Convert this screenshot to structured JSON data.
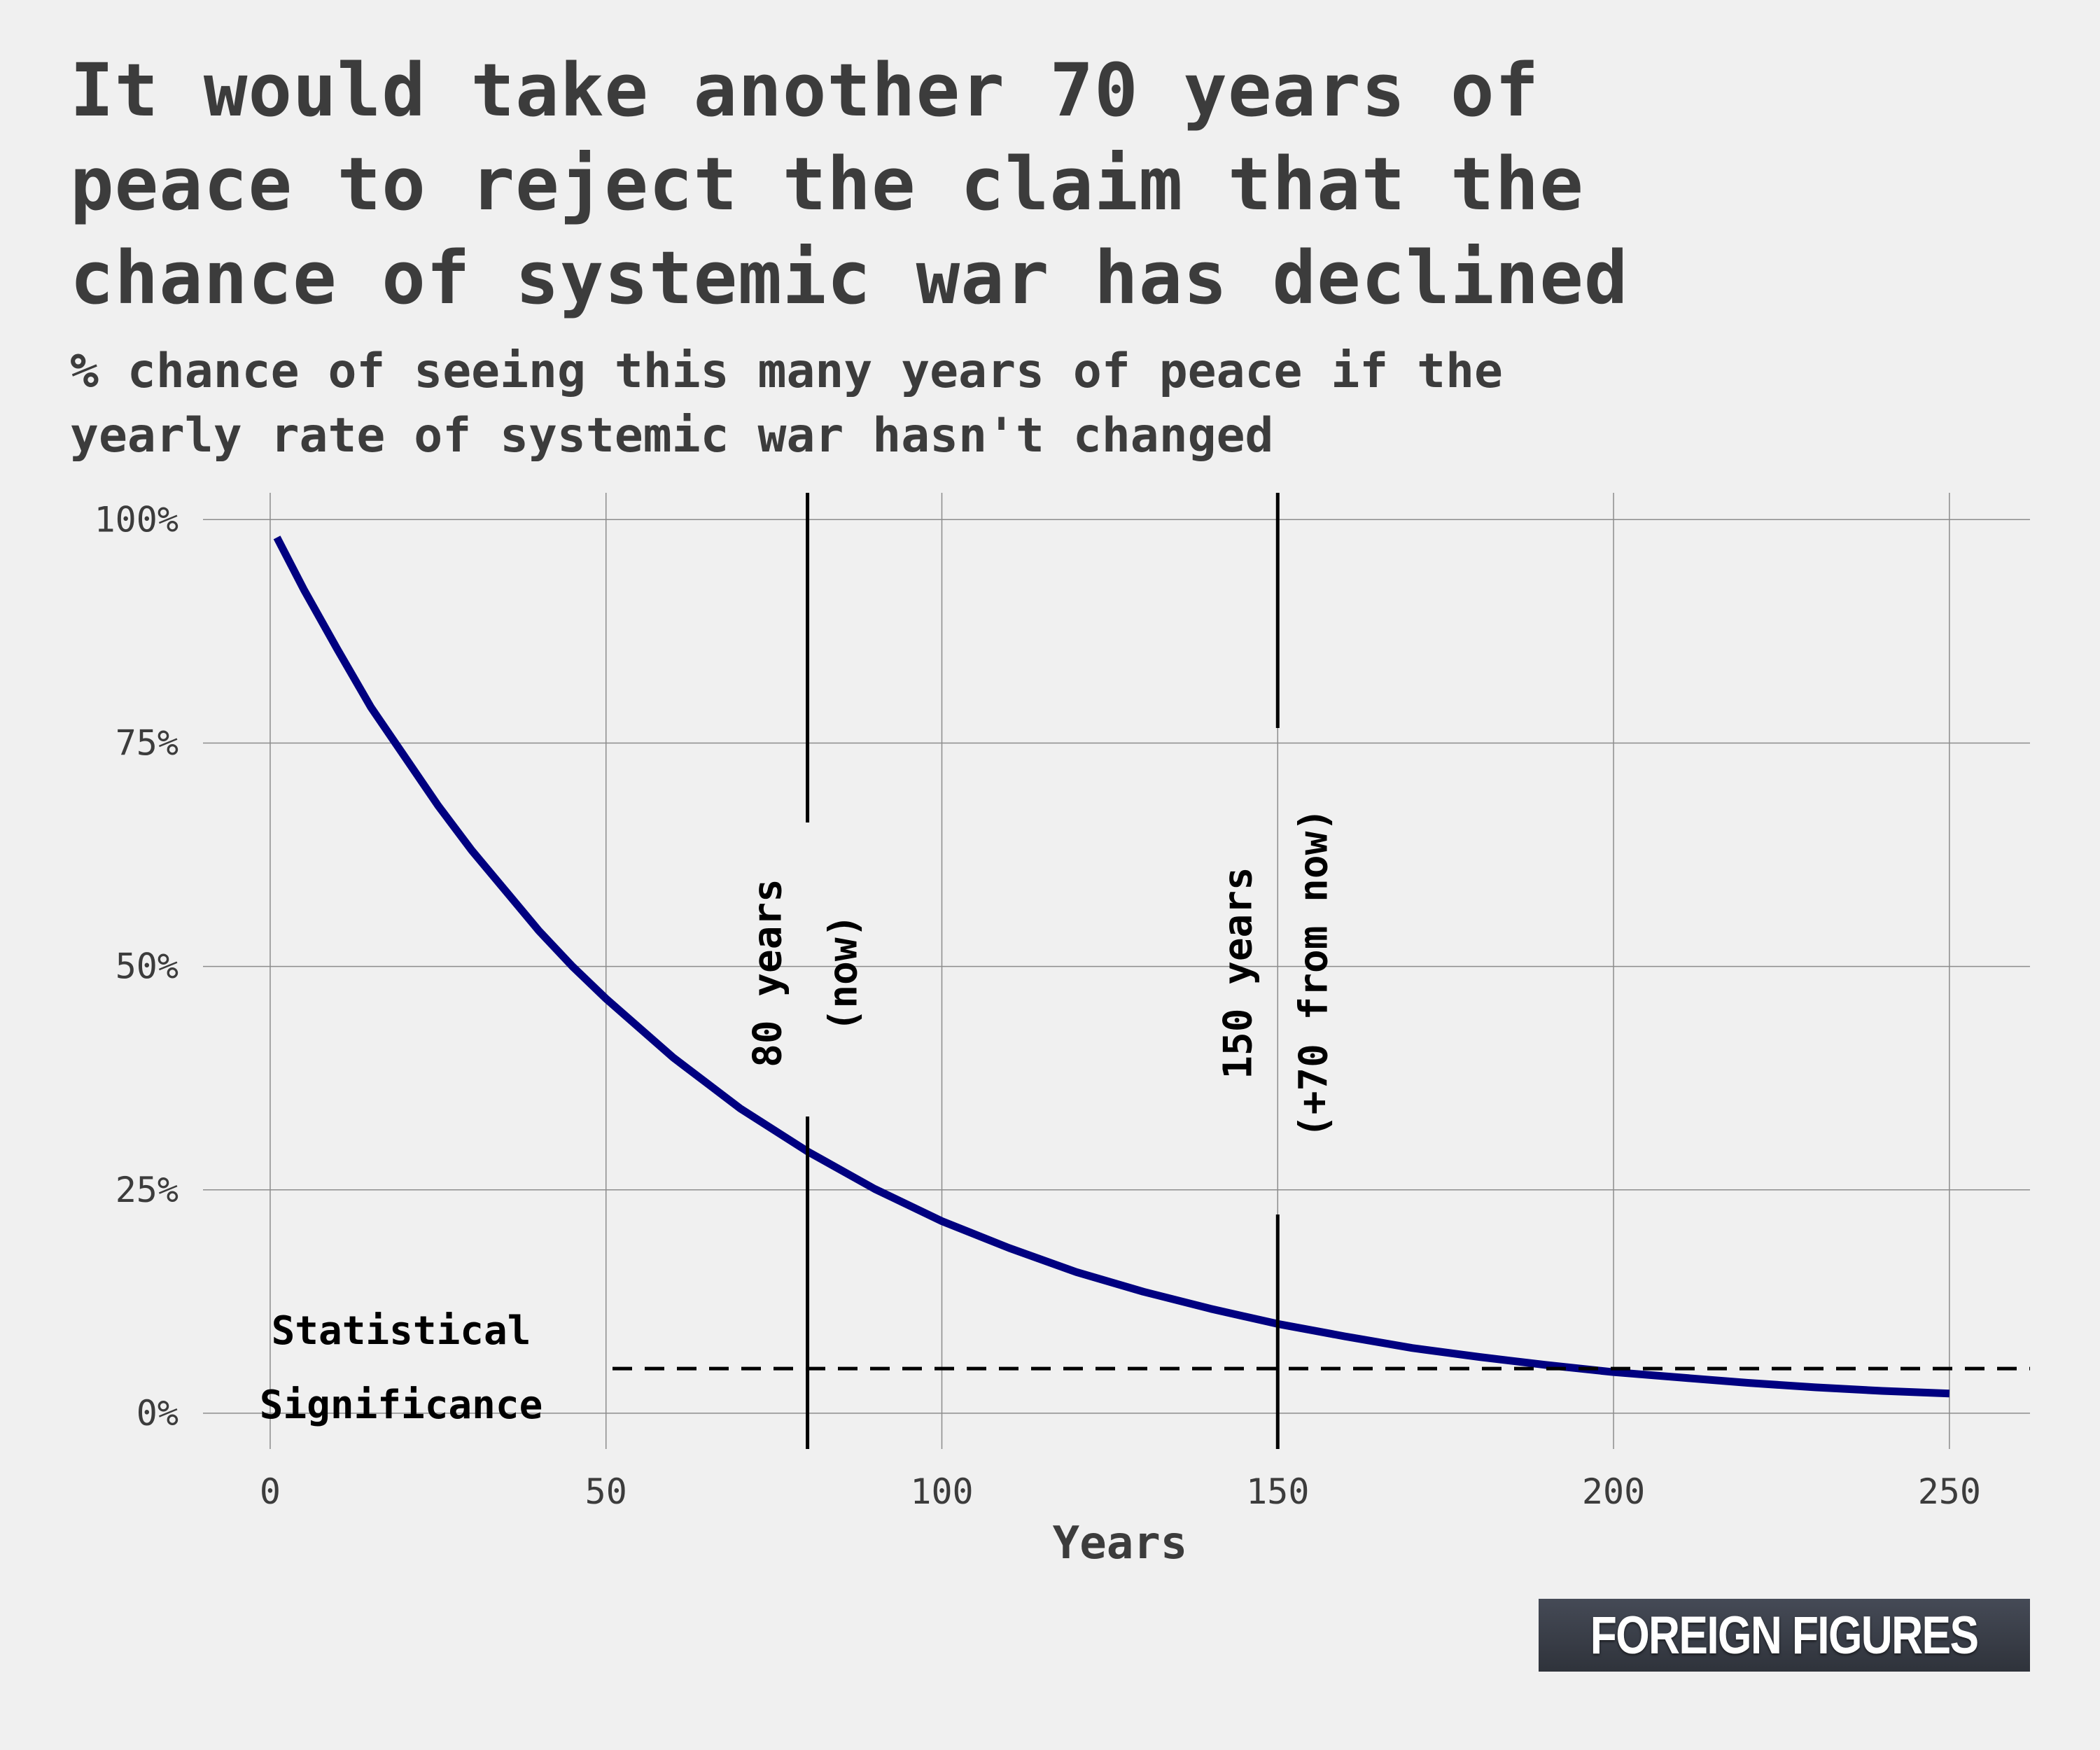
{
  "title": "It would take another 70 years of\npeace to reject the claim that the\nchance of systemic war has declined",
  "subtitle": "% chance of seeing this many years of peace if the\nyearly rate of systemic war hasn't changed",
  "logo_text": "FOREIGN FIGURES",
  "colors": {
    "background": "#f0f0f0",
    "line": "#000080",
    "text": "#3c3c3c",
    "annotation": "#000000"
  },
  "chart_data": {
    "type": "line",
    "title": "It would take another 70 years of peace to reject the claim that the chance of systemic war has declined",
    "subtitle": "% chance of seeing this many years of peace if the yearly rate of systemic war hasn't changed",
    "xlabel": "Years",
    "ylabel": "",
    "xlim": [
      -10,
      262
    ],
    "ylim": [
      -0.04,
      1.03
    ],
    "xticks": [
      0,
      50,
      100,
      150,
      200,
      250
    ],
    "xtick_labels": [
      "0",
      "50",
      "100",
      "150",
      "200",
      "250"
    ],
    "yticks": [
      0,
      0.25,
      0.5,
      0.75,
      1.0
    ],
    "ytick_labels": [
      "0%",
      "25%",
      "50%",
      "75%",
      "100%"
    ],
    "grid": true,
    "series": [
      {
        "color": "#000080",
        "x": [
          1,
          5,
          10,
          15,
          20,
          25,
          30,
          35,
          40,
          45,
          50,
          60,
          70,
          80,
          90,
          100,
          110,
          120,
          130,
          140,
          150,
          160,
          170,
          180,
          190,
          200,
          210,
          220,
          230,
          240,
          250
        ],
        "y": [
          0.98,
          0.922,
          0.855,
          0.79,
          0.735,
          0.68,
          0.63,
          0.585,
          0.54,
          0.5,
          0.464,
          0.398,
          0.341,
          0.293,
          0.251,
          0.215,
          0.185,
          0.158,
          0.136,
          0.117,
          0.1,
          0.086,
          0.073,
          0.063,
          0.054,
          0.046,
          0.04,
          0.034,
          0.029,
          0.025,
          0.022
        ]
      }
    ],
    "vlines": [
      {
        "x": 80,
        "label_line1": "80 years",
        "label_line2": "(now)"
      },
      {
        "x": 150,
        "label_line1": "150 years",
        "label_line2": "(+70 from now)"
      }
    ],
    "hline": {
      "y": 0.05,
      "style": "dashed",
      "label_line1": "Statistical",
      "label_line2": "Significance"
    }
  }
}
